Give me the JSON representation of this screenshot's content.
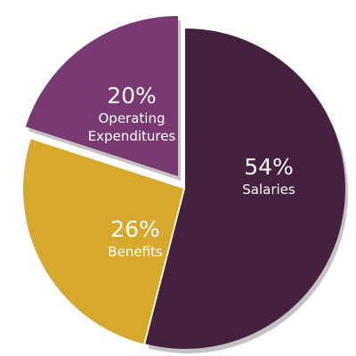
{
  "chart_data": {
    "type": "pie",
    "categories": [
      "Salaries",
      "Benefits",
      "Operating Expenditures"
    ],
    "values": [
      54,
      26,
      20
    ],
    "value_labels": [
      "54%",
      "26%",
      "20%"
    ],
    "colors": [
      "#46203f",
      "#d6a82b",
      "#783a70"
    ]
  }
}
